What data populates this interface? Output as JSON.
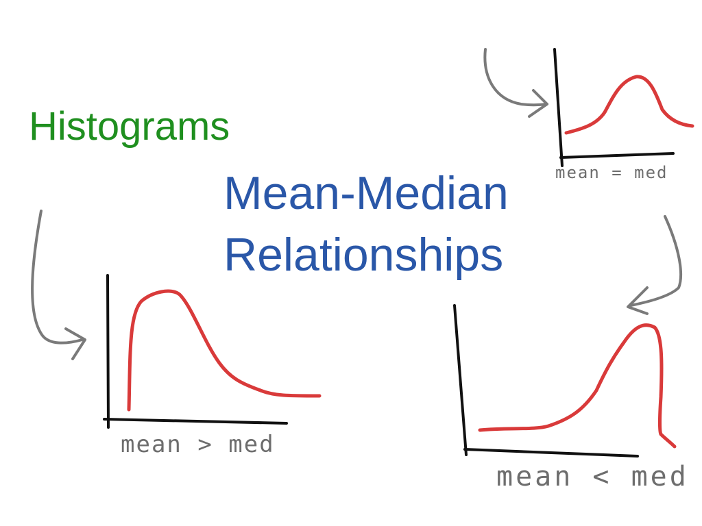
{
  "title": {
    "main": "Histograms",
    "subtitle_line1": "Mean-Median",
    "subtitle_line2": "Relationships"
  },
  "histograms": [
    {
      "id": "right-skewed",
      "label": "mean > med",
      "curve_color": "#d93a3a",
      "shape": "skewed right"
    },
    {
      "id": "symmetric",
      "label": "mean = med",
      "curve_color": "#d93a3a",
      "shape": "symmetric"
    },
    {
      "id": "left-skewed",
      "label": "mean < med",
      "curve_color": "#d93a3a",
      "shape": "skewed left"
    }
  ],
  "colors": {
    "title_green": "#1f8f1f",
    "title_blue": "#2a57a8",
    "axis": "#111111",
    "arrow": "#7a7a7a",
    "label": "#6d6d6d",
    "curve": "#d93a3a"
  }
}
